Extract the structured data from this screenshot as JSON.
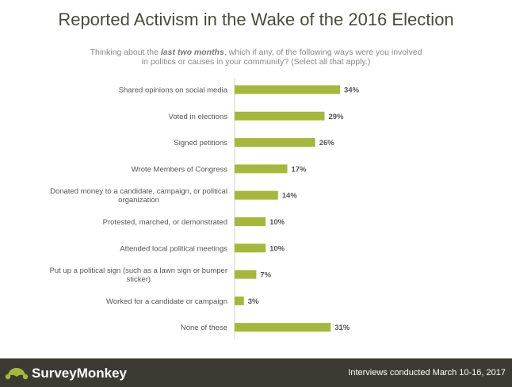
{
  "header": {
    "title": "Reported Activism in the Wake of the 2016 Election",
    "subtitle_pre": "Thinking about the ",
    "subtitle_em": "last two months",
    "subtitle_post": ", which if any, of the following ways were you involved",
    "subtitle_line2": "in politics or causes in your community? (Select all that apply.)"
  },
  "footer": {
    "brand": "SurveyMonkey",
    "note": "Interviews conducted March 10-16, 2017"
  },
  "colors": {
    "bar": "#a5b83a",
    "footer_bg": "#3b3b33",
    "title": "#4a4a3e"
  },
  "chart_data": {
    "type": "bar",
    "orientation": "horizontal",
    "categories": [
      [
        "Shared opinions on social media"
      ],
      [
        "Voted in elections"
      ],
      [
        "Signed petitions"
      ],
      [
        "Wrote Members of Congress"
      ],
      [
        "Donated money to a candidate, campaign, or political",
        "organization"
      ],
      [
        "Protested, marched, or demonstrated"
      ],
      [
        "Attended local political meetings"
      ],
      [
        "Put up a political sign (such as a lawn sign or bumper",
        "sticker)"
      ],
      [
        "Worked for a candidate or campaign"
      ],
      [
        "None of these"
      ]
    ],
    "values": [
      34,
      29,
      26,
      17,
      14,
      10,
      10,
      7,
      3,
      31
    ],
    "value_labels": [
      "34%",
      "29%",
      "26%",
      "17%",
      "14%",
      "10%",
      "10%",
      "7%",
      "3%",
      "31%"
    ],
    "unit": "%",
    "xlim": [
      0,
      100
    ],
    "grid": false,
    "legend": "none"
  }
}
